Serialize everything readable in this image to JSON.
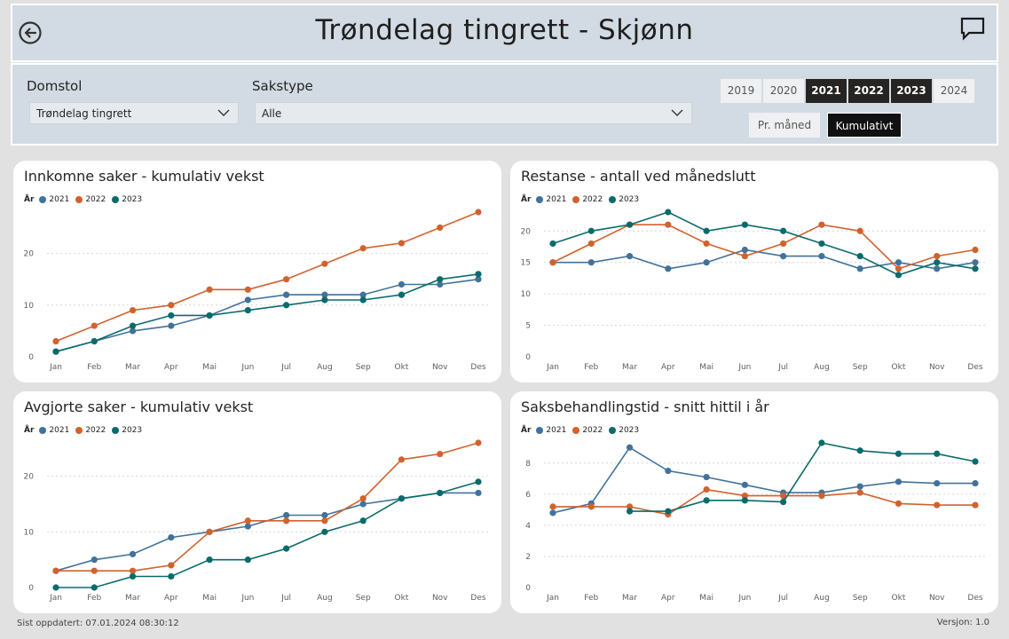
{
  "header": {
    "title": "Trøndelag tingrett - Skjønn"
  },
  "filters": {
    "domstol_label": "Domstol",
    "domstol_value": "Trøndelag tingrett",
    "sakstype_label": "Sakstype",
    "sakstype_value": "Alle",
    "years": [
      {
        "label": "2019",
        "selected": false
      },
      {
        "label": "2020",
        "selected": false
      },
      {
        "label": "2021",
        "selected": true
      },
      {
        "label": "2022",
        "selected": true
      },
      {
        "label": "2023",
        "selected": true
      },
      {
        "label": "2024",
        "selected": false
      }
    ],
    "modes": [
      {
        "label": "Pr. måned",
        "selected": false
      },
      {
        "label": "Kumulativt",
        "selected": true
      }
    ]
  },
  "legend": {
    "title": "År",
    "items": [
      {
        "name": "2021",
        "color": "#41729b"
      },
      {
        "name": "2022",
        "color": "#d1622e"
      },
      {
        "name": "2023",
        "color": "#0b6b6b"
      }
    ]
  },
  "chart_data": [
    {
      "type": "line",
      "title": "Innkomne saker - kumulativ vekst",
      "categories": [
        "Jan",
        "Feb",
        "Mar",
        "Apr",
        "Mai",
        "Jun",
        "Jul",
        "Aug",
        "Sep",
        "Okt",
        "Nov",
        "Des"
      ],
      "ylim": [
        0,
        28
      ],
      "yticks": [
        0,
        10,
        20
      ],
      "grid": true,
      "legend_position": "top-left",
      "series": [
        {
          "name": "2021",
          "values": [
            1,
            3,
            5,
            6,
            8,
            11,
            12,
            12,
            12,
            14,
            14,
            15
          ]
        },
        {
          "name": "2022",
          "values": [
            3,
            6,
            9,
            10,
            13,
            13,
            15,
            18,
            21,
            22,
            25,
            28
          ]
        },
        {
          "name": "2023",
          "values": [
            1,
            3,
            6,
            8,
            8,
            9,
            10,
            11,
            11,
            12,
            15,
            16
          ]
        }
      ]
    },
    {
      "type": "line",
      "title": "Restanse - antall ved månedslutt",
      "categories": [
        "Jan",
        "Feb",
        "Mar",
        "Apr",
        "Mai",
        "Jun",
        "Jul",
        "Aug",
        "Sep",
        "Okt",
        "Nov",
        "Des"
      ],
      "ylim": [
        0,
        23
      ],
      "yticks": [
        0,
        5,
        10,
        15,
        20
      ],
      "grid": true,
      "legend_position": "top-left",
      "series": [
        {
          "name": "2021",
          "values": [
            15,
            15,
            16,
            14,
            15,
            17,
            16,
            16,
            14,
            15,
            14,
            15
          ]
        },
        {
          "name": "2022",
          "values": [
            15,
            18,
            21,
            21,
            18,
            16,
            18,
            21,
            20,
            14,
            16,
            17
          ]
        },
        {
          "name": "2023",
          "values": [
            18,
            20,
            21,
            23,
            20,
            21,
            20,
            18,
            16,
            13,
            15,
            14
          ]
        }
      ]
    },
    {
      "type": "line",
      "title": "Avgjorte saker - kumulativ vekst",
      "categories": [
        "Jan",
        "Feb",
        "Mar",
        "Apr",
        "Mai",
        "Jun",
        "Jul",
        "Aug",
        "Sep",
        "Okt",
        "Nov",
        "Des"
      ],
      "ylim": [
        0,
        26
      ],
      "yticks": [
        0,
        10,
        20
      ],
      "grid": true,
      "legend_position": "top-left",
      "series": [
        {
          "name": "2021",
          "values": [
            3,
            5,
            6,
            9,
            10,
            11,
            13,
            13,
            15,
            16,
            17,
            17
          ]
        },
        {
          "name": "2022",
          "values": [
            3,
            3,
            3,
            4,
            10,
            12,
            12,
            12,
            16,
            23,
            24,
            26
          ]
        },
        {
          "name": "2023",
          "values": [
            0,
            0,
            2,
            2,
            5,
            5,
            7,
            10,
            12,
            16,
            17,
            19
          ]
        }
      ]
    },
    {
      "type": "line",
      "title": "Saksbehandlingstid - snitt hittil i år",
      "categories": [
        "Jan",
        "Feb",
        "Mar",
        "Apr",
        "Mai",
        "Jun",
        "Jul",
        "Aug",
        "Sep",
        "Okt",
        "Nov",
        "Des"
      ],
      "ylim": [
        0,
        9.3
      ],
      "yticks": [
        0,
        2,
        4,
        6,
        8
      ],
      "grid": true,
      "legend_position": "top-left",
      "series": [
        {
          "name": "2021",
          "values": [
            4.8,
            5.4,
            9.0,
            7.5,
            7.1,
            6.6,
            6.1,
            6.1,
            6.5,
            6.8,
            6.7,
            6.7
          ]
        },
        {
          "name": "2022",
          "values": [
            5.2,
            5.2,
            5.2,
            4.7,
            6.3,
            5.9,
            5.9,
            5.9,
            6.1,
            5.4,
            5.3,
            5.3
          ]
        },
        {
          "name": "2023",
          "values": [
            null,
            null,
            4.9,
            4.9,
            5.6,
            5.6,
            5.5,
            9.3,
            8.8,
            8.6,
            8.6,
            8.1
          ]
        }
      ]
    }
  ],
  "footer": {
    "updated": "Sist oppdatert: 07.01.2024 08:30:12",
    "version": "Versjon: 1.0"
  }
}
